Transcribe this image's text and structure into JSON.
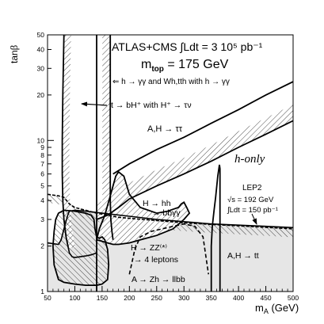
{
  "chart_data": {
    "type": "line",
    "title": "ATLAS+CMS  ∫Ldt = 3 10⁵ pb⁻¹",
    "subtitle_label": "m",
    "subtitle_sub": "top",
    "subtitle_value": " = 175 GeV",
    "xlabel_main": "m",
    "xlabel_sub": "A",
    "xlabel_unit": " (GeV)",
    "ylabel_main": "tan",
    "ylabel_greek": "β",
    "xlim": [
      50,
      500
    ],
    "ylim": [
      1,
      50
    ],
    "y_scale": "log",
    "x_ticks": [
      "50",
      "100",
      "150",
      "200",
      "250",
      "300",
      "350",
      "400",
      "450",
      "500"
    ],
    "y_ticks": [
      "1",
      "2",
      "3",
      "4",
      "5",
      "6",
      "7",
      "8",
      "9",
      "10",
      "20",
      "30",
      "40",
      "50"
    ],
    "annotations": {
      "h_gamma": "⇐ h → γγ and Wh,tth with h → γγ",
      "tbh": "t → bH⁺ with H⁺ → τν",
      "tautau": "A,H → ττ",
      "honly": "h-only",
      "lep2": "LEP2",
      "lep2_sqrt": "√s = 192 GeV",
      "lep2_lumi": "∫Ldt = 150 pb⁻¹",
      "hh_1": "H → hh",
      "hh_2": "→ bbγγ",
      "zz_1": "H → ZZ⁽*⁾",
      "zz_2": "→ 4 leptons",
      "zh": "A → Zh → llbb",
      "tt": "A,H → tt"
    },
    "series": [
      {
        "key": "h_gamma_band",
        "x": [
          50,
          70,
          75,
          80,
          87,
          90,
          100,
          120,
          150,
          200,
          250,
          300,
          350,
          400,
          450,
          500
        ],
        "y": [
          2.1,
          2.05,
          2.2,
          2.6,
          3.2,
          3.4,
          3.45,
          3.4,
          3.3,
          3.15,
          3.0,
          2.9,
          2.8,
          2.75,
          2.7,
          2.65
        ]
      },
      {
        "key": "tautau_lower",
        "x": [
          140,
          160,
          180,
          200,
          250,
          300,
          350,
          400,
          450,
          500
        ],
        "y": [
          3.0,
          3.2,
          3.6,
          4.1,
          5.0,
          6.0,
          7.3,
          9.0,
          11.0,
          13.5
        ]
      },
      {
        "key": "tautau_upper",
        "x": [
          170,
          200,
          250,
          300,
          350,
          400,
          450,
          500
        ],
        "y": [
          6.0,
          7.0,
          8.7,
          10.5,
          13.0,
          16.0,
          20.0,
          24.5
        ]
      },
      {
        "key": "lep2_limit",
        "x": [
          50,
          70,
          80,
          85,
          90,
          100,
          120,
          140,
          160,
          180,
          200,
          250,
          300,
          350,
          400,
          450,
          500
        ],
        "y": [
          4.4,
          4.3,
          4.2,
          4.0,
          3.8,
          3.6,
          3.45,
          3.3,
          3.2,
          3.1,
          3.05,
          2.95,
          2.85,
          2.78,
          2.72,
          2.66,
          2.6
        ]
      },
      {
        "key": "tbh_left",
        "x": [
          80,
          78,
          77,
          77,
          78,
          80,
          84,
          88
        ],
        "y": [
          50,
          20,
          10,
          6,
          4,
          3,
          2.3,
          1.95
        ]
      },
      {
        "key": "tbh_right",
        "x": [
          140,
          140,
          140,
          140,
          140,
          140,
          140,
          140
        ],
        "y": [
          50,
          20,
          10,
          6,
          4,
          3,
          2.1,
          1
        ]
      },
      {
        "key": "tbh_upper_limit",
        "x": [
          88,
          90,
          95,
          100,
          110,
          120,
          130,
          140
        ],
        "y": [
          1.95,
          1.8,
          1.7,
          1.68,
          1.7,
          1.72,
          1.75,
          1.8
        ]
      },
      {
        "key": "h_gamma_right",
        "x": [
          165,
          165,
          165,
          165,
          165,
          166,
          168,
          170
        ],
        "y": [
          50,
          20,
          10,
          6,
          4,
          3,
          2.5,
          2.2
        ]
      },
      {
        "key": "hh_region",
        "x": [
          140,
          145,
          155,
          165,
          175,
          180,
          190,
          200,
          220,
          250,
          270,
          280,
          290,
          295,
          300,
          305,
          310,
          300,
          280,
          250,
          220,
          200,
          180,
          170,
          160,
          150,
          140
        ],
        "y": [
          2.2,
          2.6,
          3.2,
          4.3,
          5.8,
          6.2,
          5.8,
          4.4,
          3.6,
          3.3,
          3.4,
          3.5,
          3.6,
          3.8,
          3.9,
          3.6,
          3.3,
          3.0,
          2.6,
          2.35,
          2.2,
          2.1,
          2.05,
          2.05,
          2.1,
          2.15,
          2.2
        ]
      },
      {
        "key": "zz_dashed",
        "x": [
          200,
          210,
          220,
          240,
          260,
          280,
          300,
          320,
          335,
          345
        ],
        "y": [
          1.3,
          1.9,
          2.3,
          2.5,
          2.6,
          2.7,
          2.8,
          2.7,
          2.3,
          1.3
        ]
      },
      {
        "key": "tt_left",
        "x": [
          350,
          350,
          352,
          355,
          358,
          362,
          365,
          366,
          366
        ],
        "y": [
          1.0,
          2.0,
          2.7,
          3.4,
          4.2,
          5.8,
          6.9,
          6.5,
          1.0
        ]
      },
      {
        "key": "left_region",
        "x": [
          60,
          62,
          65,
          70,
          80,
          100,
          120,
          130,
          135,
          137,
          140,
          145,
          150,
          155,
          160,
          162,
          160,
          150,
          140,
          120,
          100,
          80,
          70,
          62,
          60
        ],
        "y": [
          2.0,
          2.5,
          3.0,
          3.3,
          3.45,
          3.4,
          3.3,
          3.2,
          3.0,
          2.6,
          2.3,
          2.25,
          2.3,
          2.2,
          1.9,
          1.5,
          1.2,
          1.12,
          1.1,
          1.1,
          1.12,
          1.15,
          1.2,
          1.5,
          2.0
        ]
      }
    ]
  }
}
